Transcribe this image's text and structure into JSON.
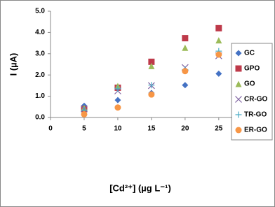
{
  "chart_data": {
    "type": "scatter",
    "x_label": "[Cd²⁺] (µg L⁻¹)",
    "y_label": "I (µA)",
    "x": [
      5,
      10,
      15,
      20,
      25
    ],
    "series": [
      {
        "name": "GC",
        "color": "#4472c4",
        "marker": "diamond",
        "values": [
          0.55,
          0.82,
          1.15,
          1.52,
          2.06
        ]
      },
      {
        "name": "GPO",
        "color": "#be3a4a",
        "marker": "square",
        "values": [
          0.4,
          1.4,
          2.62,
          3.73,
          4.2
        ]
      },
      {
        "name": "GO",
        "color": "#9bbb59",
        "marker": "triangle",
        "values": [
          0.45,
          1.48,
          2.42,
          3.28,
          3.63
        ]
      },
      {
        "name": "CR-GO",
        "color": "#8064a2",
        "marker": "cross",
        "values": [
          0.4,
          1.25,
          1.5,
          2.35,
          2.9
        ]
      },
      {
        "name": "TR-GO",
        "color": "#4bacc6",
        "marker": "plus",
        "values": [
          0.35,
          1.35,
          1.52,
          2.25,
          3.12
        ]
      },
      {
        "name": "ER-GO",
        "color": "#f79646",
        "marker": "circle",
        "values": [
          0.15,
          0.47,
          1.08,
          2.18,
          2.96
        ]
      }
    ],
    "xlim": [
      0,
      27
    ],
    "xticks": [
      0,
      5,
      10,
      15,
      20,
      25
    ],
    "ylim": [
      0,
      5
    ],
    "yticks": [
      {
        "value": 0,
        "label": "0.0"
      },
      {
        "value": 1,
        "label": "1.0"
      },
      {
        "value": 2,
        "label": "2.0"
      },
      {
        "value": 3,
        "label": "3.0"
      },
      {
        "value": 4,
        "label": "4.0"
      },
      {
        "value": 5,
        "label": "5.0"
      }
    ]
  }
}
